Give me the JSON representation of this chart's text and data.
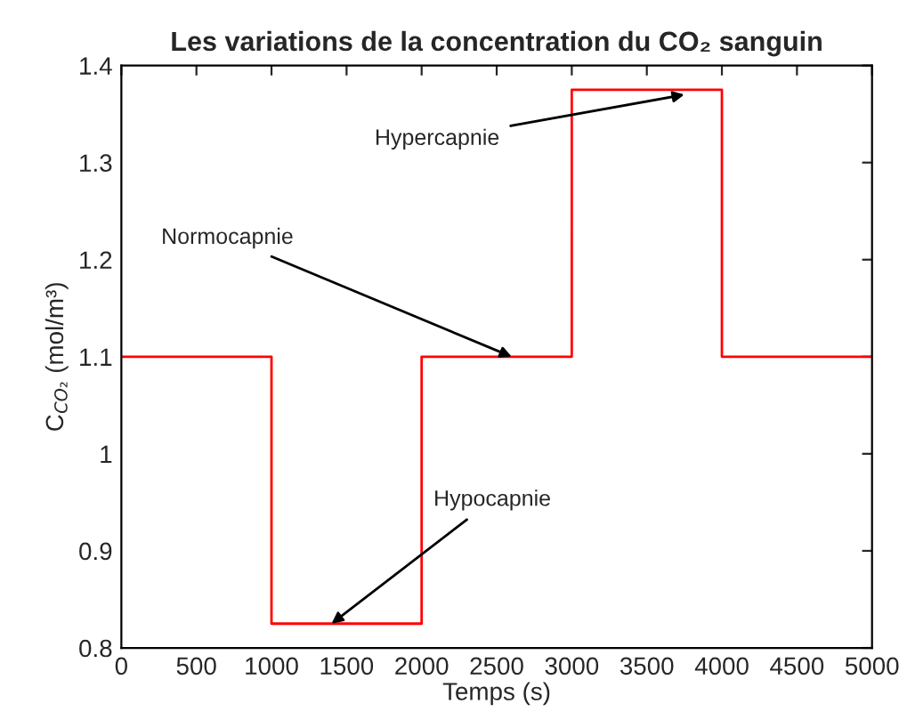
{
  "chart_data": {
    "type": "step",
    "title": "Les variations de la concentration du CO₂ sanguin",
    "xlabel": "Temps (s)",
    "ylabel": "C$_{CO₂}$ (mol/m³)",
    "x": [
      0,
      1000,
      2000,
      3000,
      4000,
      5000
    ],
    "series": [
      {
        "color": "#ff0000",
        "values": [
          1.1,
          0.825,
          1.1,
          1.375,
          1.1,
          1.1
        ]
      }
    ],
    "xlim": [
      0,
      5000
    ],
    "xticks": [
      0,
      500,
      1000,
      1500,
      2000,
      2500,
      3000,
      3500,
      4000,
      4500,
      5000
    ],
    "ylim": [
      0.8,
      1.4
    ],
    "yticks": [
      0.8,
      0.9,
      1,
      1.1,
      1.2,
      1.3,
      1.4
    ],
    "grid": false,
    "legend": false,
    "annotations": [
      {
        "text": "Hypercapnie",
        "x": 3750,
        "y": 1.37
      },
      {
        "text": "Normocapnie",
        "x": 2600,
        "y": 1.1
      },
      {
        "text": "Hypocapnie",
        "x": 1400,
        "y": 0.825
      }
    ]
  }
}
